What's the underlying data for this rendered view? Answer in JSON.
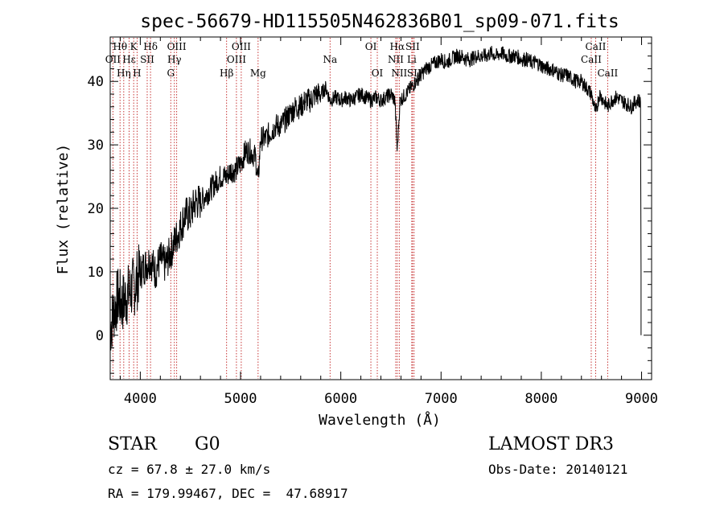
{
  "chart_data": {
    "type": "line",
    "title": "spec-56679-HD115505N462836B01_sp09-071.fits",
    "xlabel": "Wavelength (Å)",
    "ylabel": "Flux (relative)",
    "xlim": [
      3700,
      9100
    ],
    "ylim": [
      -7,
      47
    ],
    "xticks": [
      4000,
      5000,
      6000,
      7000,
      8000,
      9000
    ],
    "yticks": [
      0,
      10,
      20,
      30,
      40
    ],
    "xtick_labels": [
      "4000",
      "5000",
      "6000",
      "7000",
      "8000",
      "9000"
    ],
    "ytick_labels": [
      "0",
      "10",
      "20",
      "30",
      "40"
    ],
    "grid": false,
    "series": [
      {
        "name": "spectrum",
        "x": [
          3700,
          3740,
          3780,
          3820,
          3860,
          3900,
          3950,
          4000,
          4050,
          4100,
          4150,
          4200,
          4250,
          4300,
          4350,
          4400,
          4450,
          4500,
          4550,
          4600,
          4650,
          4700,
          4750,
          4800,
          4861,
          4900,
          4950,
          5000,
          5050,
          5100,
          5150,
          5175,
          5200,
          5250,
          5300,
          5350,
          5400,
          5450,
          5500,
          5550,
          5600,
          5650,
          5700,
          5750,
          5800,
          5850,
          5893,
          5950,
          6000,
          6050,
          6100,
          6150,
          6200,
          6250,
          6300,
          6350,
          6400,
          6450,
          6500,
          6540,
          6563,
          6590,
          6650,
          6700,
          6750,
          6800,
          6850,
          6900,
          6950,
          7000,
          7050,
          7100,
          7150,
          7200,
          7250,
          7300,
          7350,
          7400,
          7450,
          7500,
          7550,
          7600,
          7650,
          7700,
          7750,
          7800,
          7850,
          7900,
          7950,
          8000,
          8050,
          8100,
          8150,
          8200,
          8250,
          8300,
          8350,
          8400,
          8450,
          8500,
          8542,
          8580,
          8620,
          8662,
          8700,
          8750,
          8800,
          8850,
          8900,
          8950,
          8990
        ],
        "values": [
          1,
          4,
          6,
          5,
          6,
          7,
          8,
          10,
          11,
          12,
          10,
          12,
          11,
          13,
          15,
          17,
          19,
          19,
          21,
          21,
          22,
          23,
          24,
          25,
          25,
          26,
          26,
          27,
          29,
          29,
          28,
          24,
          31,
          31,
          32,
          33,
          33,
          34,
          35,
          36,
          36,
          37,
          37,
          38,
          38,
          39,
          37,
          37.5,
          37,
          37.5,
          37,
          37.5,
          38,
          37.5,
          37,
          37.5,
          37,
          37.5,
          38,
          37,
          29,
          37,
          38,
          39,
          40,
          41,
          42,
          42.5,
          43,
          43.5,
          43,
          43.5,
          44,
          44,
          43.5,
          43.5,
          44,
          44,
          44,
          44.5,
          44,
          44.5,
          44,
          44,
          44,
          43.5,
          43.5,
          43,
          43,
          42.5,
          42,
          42,
          41.5,
          41,
          41,
          40.5,
          40,
          40,
          39,
          38,
          35,
          38,
          37,
          36,
          37,
          37.5,
          37,
          36.5,
          36,
          37,
          37
        ]
      }
    ],
    "line_annotations": [
      {
        "label": "Hθ",
        "wavelength": 3798,
        "row": 1
      },
      {
        "label": "OII",
        "wavelength": 3727,
        "row": 2
      },
      {
        "label": "Hη",
        "wavelength": 3835,
        "row": 3
      },
      {
        "label": "K",
        "wavelength": 3934,
        "row": 1
      },
      {
        "label": "Hε",
        "wavelength": 3889,
        "row": 2
      },
      {
        "label": "H",
        "wavelength": 3968,
        "row": 3
      },
      {
        "label": "Hδ",
        "wavelength": 4102,
        "row": 1
      },
      {
        "label": "SII",
        "wavelength": 4069,
        "row": 2
      },
      {
        "label": "OIII",
        "wavelength": 4363,
        "row": 1
      },
      {
        "label": "Hγ",
        "wavelength": 4340,
        "row": 2
      },
      {
        "label": "G",
        "wavelength": 4304,
        "row": 3
      },
      {
        "label": "Hβ",
        "wavelength": 4861,
        "row": 3
      },
      {
        "label": "OIII",
        "wavelength": 5007,
        "row": 1
      },
      {
        "label": "OIII",
        "wavelength": 4959,
        "row": 2
      },
      {
        "label": "Mg",
        "wavelength": 5175,
        "row": 3
      },
      {
        "label": "Na",
        "wavelength": 5893,
        "row": 2
      },
      {
        "label": "OI",
        "wavelength": 6300,
        "row": 1
      },
      {
        "label": "OI",
        "wavelength": 6364,
        "row": 3
      },
      {
        "label": "Hα",
        "wavelength": 6563,
        "row": 1
      },
      {
        "label": "SII",
        "wavelength": 6716,
        "row": 1
      },
      {
        "label": "NII",
        "wavelength": 6548,
        "row": 2
      },
      {
        "label": "Li",
        "wavelength": 6708,
        "row": 2
      },
      {
        "label": "NII",
        "wavelength": 6583,
        "row": 3
      },
      {
        "label": "SII",
        "wavelength": 6731,
        "row": 3
      },
      {
        "label": "CaII",
        "wavelength": 8542,
        "row": 1
      },
      {
        "label": "CaII",
        "wavelength": 8498,
        "row": 2
      },
      {
        "label": "CaII",
        "wavelength": 8662,
        "row": 3
      }
    ]
  },
  "info": {
    "object_class": "STAR",
    "subclass": "G0",
    "survey": "LAMOST DR3",
    "redshift": "cz = 67.8 ± 27.0 km/s",
    "obs_date": "Obs-Date: 20140121",
    "coords": "RA = 179.99467, DEC =  47.68917"
  },
  "colors": {
    "line_marker": "#c02020",
    "spectrum": "#000000"
  }
}
